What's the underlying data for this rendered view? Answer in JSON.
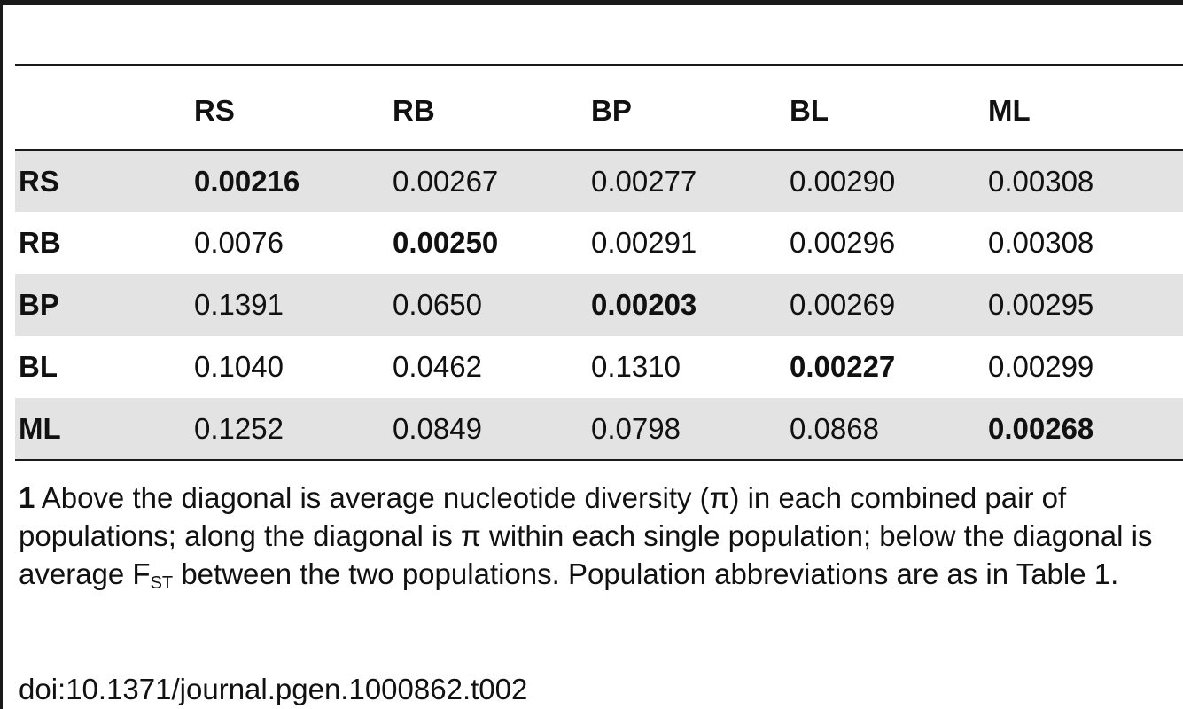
{
  "table": {
    "column_headers": [
      "",
      "RS",
      "RB",
      "BP",
      "BL",
      "ML"
    ],
    "rows": [
      {
        "label": "RS",
        "values": [
          "0.00216",
          "0.00267",
          "0.00277",
          "0.00290",
          "0.00308"
        ]
      },
      {
        "label": "RB",
        "values": [
          "0.0076",
          "0.00250",
          "0.00291",
          "0.00296",
          "0.00308"
        ]
      },
      {
        "label": "BP",
        "values": [
          "0.1391",
          "0.0650",
          "0.00203",
          "0.00269",
          "0.00295"
        ]
      },
      {
        "label": "BL",
        "values": [
          "0.1040",
          "0.0462",
          "0.1310",
          "0.00227",
          "0.00299"
        ]
      },
      {
        "label": "ML",
        "values": [
          "0.1252",
          "0.0849",
          "0.0798",
          "0.0868",
          "0.00268"
        ]
      }
    ]
  },
  "footnote": {
    "number": "1",
    "text_before_fst": " Above the diagonal is average nucleotide diversity (π) in each combined pair of populations; along the diagonal is π within each single population; below the diagonal is average F",
    "fst_subscript": "ST",
    "text_after_fst": " between the two populations. Population abbreviations are as in Table 1."
  },
  "doi": "doi:10.1371/journal.pgen.1000862.t002"
}
